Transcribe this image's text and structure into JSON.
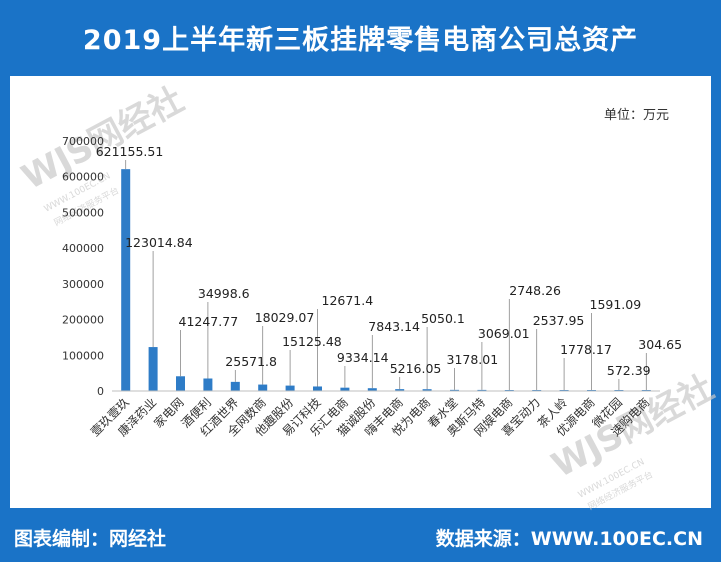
{
  "header": {
    "title": "2019上半年新三板挂牌零售电商公司总资产"
  },
  "unit_label": "单位：万元",
  "footer": {
    "compiler": "图表编制：网经社",
    "source": "数据来源：WWW.100EC.CN"
  },
  "watermark": {
    "brand": "网经社",
    "url": "WWW.100EC.CN",
    "slogan": "网络经济服务平台"
  },
  "colors": {
    "frame": "#1a73c7",
    "bar": "#2e7cc7"
  },
  "chart_data": {
    "type": "bar",
    "ylim": [
      0,
      700000
    ],
    "yticks": [
      "0",
      "100000",
      "200000",
      "300000",
      "400000",
      "500000",
      "600000",
      "700000"
    ],
    "categories": [
      "壹玖壹玖",
      "康泽药业",
      "家电网",
      "酒便利",
      "红酒世界",
      "全网数商",
      "他趣股份",
      "易订科技",
      "乐汇电商",
      "猫诚股份",
      "嗨丰电商",
      "悦为电商",
      "春水堂",
      "奥斯马特",
      "网娱电商",
      "喜宝动力",
      "茶人岭",
      "优源电商",
      "微花园",
      "速购电商"
    ],
    "values": [
      621155.51,
      123014.84,
      41247.77,
      34998.6,
      25571.8,
      18029.07,
      15125.48,
      12671.4,
      9334.14,
      7843.14,
      5216.05,
      5050.1,
      3178.01,
      3069.01,
      2748.26,
      2537.95,
      1778.17,
      1591.09,
      572.39,
      304.65
    ],
    "labels": [
      "621155.51",
      "123014.84",
      "41247.77",
      "34998.6",
      "25571.8",
      "18029.07",
      "15125.48",
      "12671.4",
      "9334.14",
      "7843.14",
      "5216.05",
      "5050.1",
      "3178.01",
      "3069.01",
      "2748.26",
      "2537.95",
      "1778.17",
      "1591.09",
      "572.39",
      "304.65"
    ]
  }
}
